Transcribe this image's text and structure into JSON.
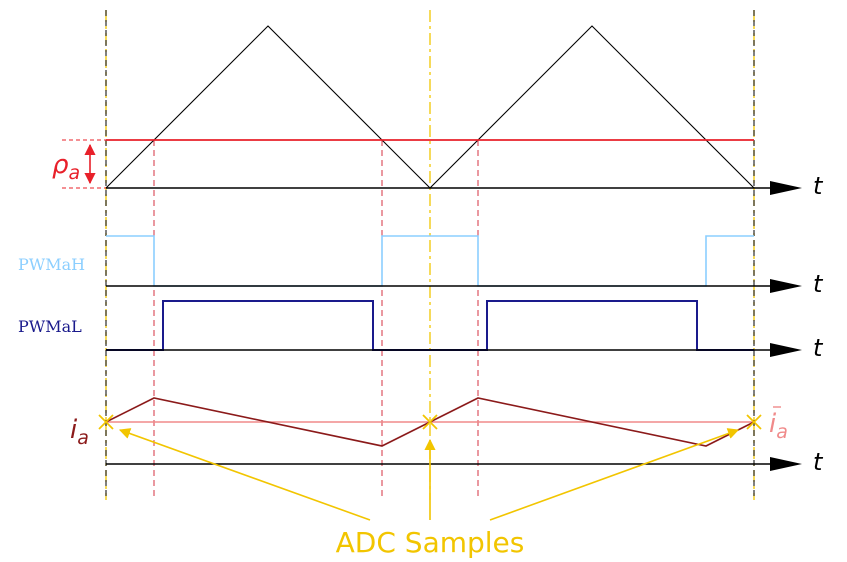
{
  "labels": {
    "t": "t",
    "rho_main": "ρ",
    "rho_sub": "a",
    "pwm_high": "PWMaH",
    "pwm_low": "PWMaL",
    "i_main": "i",
    "i_sub": "a",
    "ibar_main": "i",
    "ibar_sub": "a",
    "adc": "ADC Samples"
  },
  "colors": {
    "carrier": "#000000",
    "reference": "#e8202a",
    "rho_label": "#e8202a",
    "pwm_high": "#8ccfff",
    "pwm_low": "#1a1a8c",
    "current": "#8b1a1a",
    "current_mean": "#f08a8a",
    "adc": "#f2c500",
    "switch_guides": "#d43040"
  },
  "icons": {
    "axis_arrow": "arrow-right-icon",
    "sample_marker": "cross-icon"
  }
}
